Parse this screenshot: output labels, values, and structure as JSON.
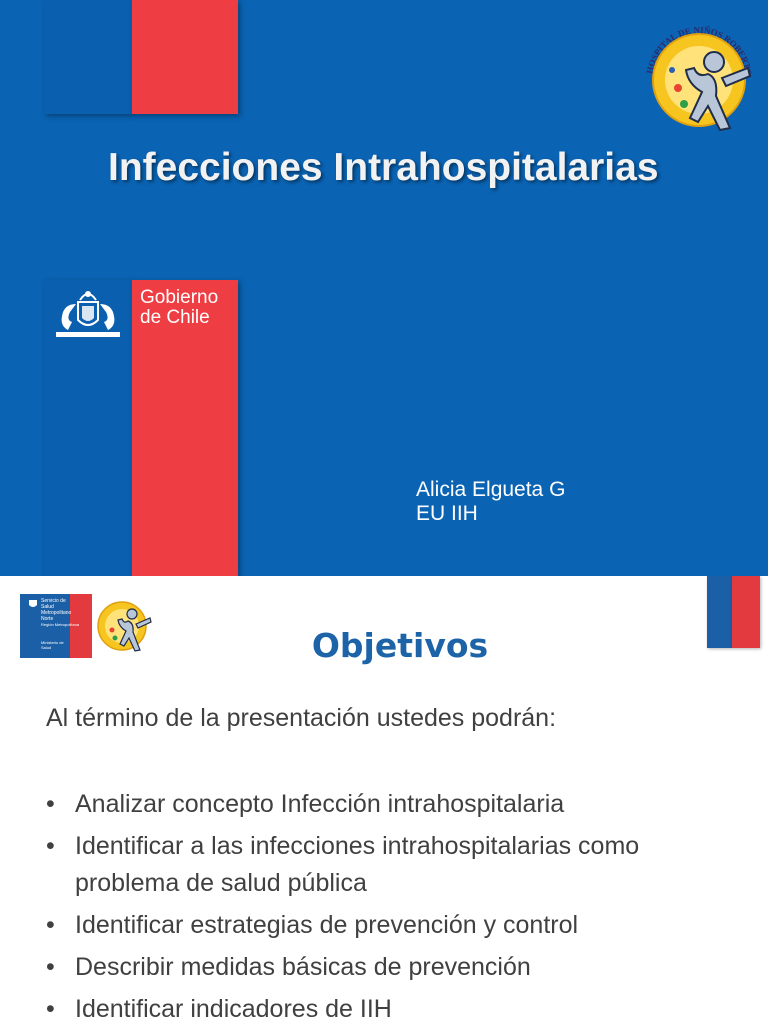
{
  "slide1": {
    "title": "Infecciones Intrahospitalarias",
    "government": "Gobierno\nde Chile",
    "author": "Alicia Elgueta G",
    "author_role": "EU IIH",
    "hospital_logo_text": "HOSPITAL DE NIÑOS ROBERTO DEL RIO",
    "colors": {
      "blue": "#0a63b3",
      "red": "#ef3e43"
    }
  },
  "slide2": {
    "logo_line1": "Servicio de\nSalud\nMetropolitano\nNorte",
    "logo_line2": "Región Metropolitana",
    "logo_line3": "Ministerio de\nSalud",
    "title": "Objetivos",
    "intro": "Al término de la presentación ustedes podrán:",
    "objectives": [
      "Analizar concepto Infección intrahospitalaria",
      "Identificar a las infecciones intrahospitalarias como problema de salud pública",
      "Identificar estrategias de prevención y control",
      "Describir medidas básicas de prevención",
      "Identificar indicadores de IIH"
    ]
  }
}
